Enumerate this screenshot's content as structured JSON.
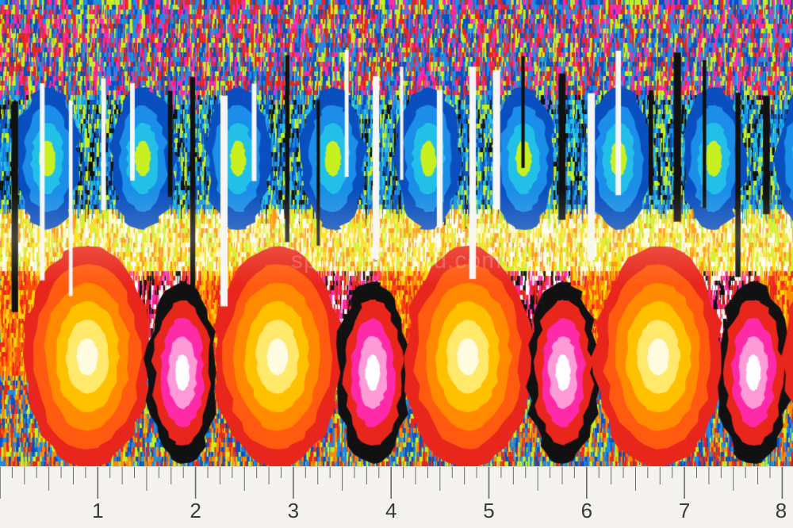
{
  "image": {
    "subject": "ikat-print-fabric-swatch",
    "palette": [
      "#e8261c",
      "#ff8a00",
      "#ffd800",
      "#c8f020",
      "#1a8ee8",
      "#0a4fc0",
      "#ff2aa8",
      "#111111",
      "#ffffff"
    ]
  },
  "watermark": {
    "text": "spandexworld.com"
  },
  "ruler": {
    "unit": "inch",
    "labels": [
      "1",
      "2",
      "3",
      "4",
      "5",
      "6",
      "7",
      "8"
    ]
  }
}
